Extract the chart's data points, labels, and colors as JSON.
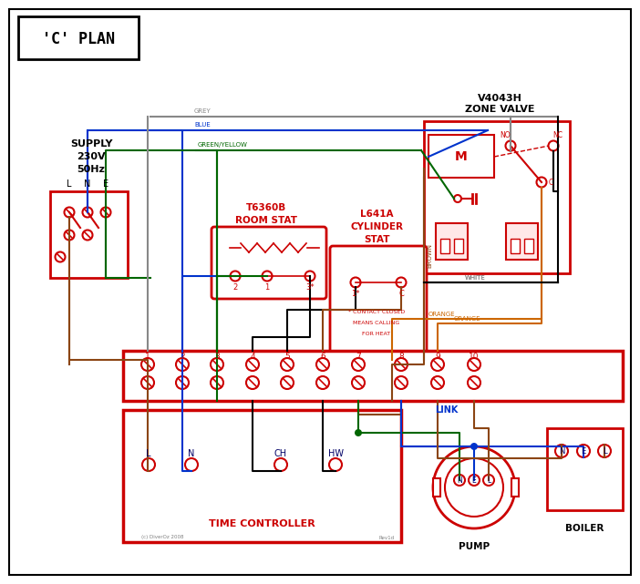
{
  "bg_color": "#ffffff",
  "black": "#000000",
  "red": "#cc0000",
  "blue": "#0033cc",
  "green": "#006600",
  "brown": "#8B4513",
  "grey": "#888888",
  "orange": "#cc6600",
  "dark_blue": "#000066",
  "title": "'C' PLAN",
  "supply_lines": [
    "SUPPLY",
    "230V",
    "50Hz"
  ],
  "zone_valve_lines": [
    "V4043H",
    "ZONE VALVE"
  ],
  "room_stat_lines": [
    "T6360B",
    "ROOM STAT"
  ],
  "cyl_stat_lines": [
    "L641A",
    "CYLINDER",
    "STAT"
  ],
  "terminal_labels": [
    "1",
    "2",
    "3",
    "4",
    "5",
    "6",
    "7",
    "8",
    "9",
    "10"
  ],
  "tc_labels": [
    "L",
    "N",
    "CH",
    "HW"
  ],
  "link_text": "LINK",
  "tc_text": "TIME CONTROLLER",
  "pump_text": "PUMP",
  "boiler_text": "BOILER",
  "copyright": "(c) DiverOz 2008",
  "rev": "Rev1d",
  "wire_labels": {
    "grey": "GREY",
    "blue": "BLUE",
    "green_yellow": "GREEN/YELLOW",
    "brown": "BROWN",
    "white": "WHITE",
    "orange": "ORANGE"
  },
  "note_lines": [
    "* CONTACT CLOSED",
    "MEANS CALLING",
    "FOR HEAT"
  ]
}
